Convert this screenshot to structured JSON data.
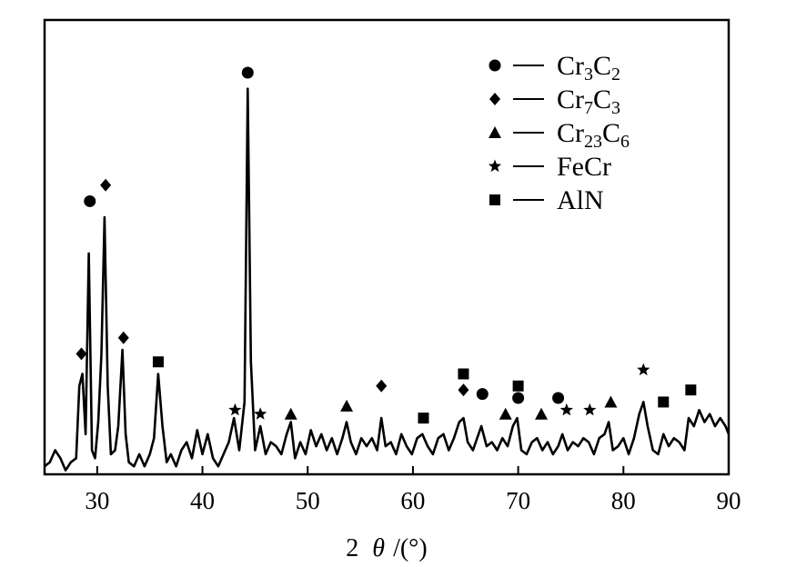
{
  "chart_data": {
    "type": "line",
    "title": "",
    "xlabel_prefix": "2",
    "xlabel_symbol": "θ",
    "xlabel_suffix": "/(°)",
    "ylabel": "",
    "xlim": [
      25,
      90
    ],
    "ylim": [
      0,
      100
    ],
    "xticks": [
      30,
      40,
      50,
      60,
      70,
      80,
      90
    ],
    "xtick_labels": [
      "30",
      "40",
      "50",
      "60",
      "70",
      "80",
      "90"
    ],
    "y_ticks_shown": false,
    "grid": false,
    "legend": {
      "placement": "top-right",
      "entries": [
        {
          "marker": "circle",
          "base": "Cr",
          "sub1": "3",
          "base2": "C",
          "sub2": "2"
        },
        {
          "marker": "diamond",
          "base": "Cr",
          "sub1": "7",
          "base2": "C",
          "sub2": "3"
        },
        {
          "marker": "triangle",
          "base": "Cr",
          "sub1": "23",
          "base2": "C",
          "sub2": "6"
        },
        {
          "marker": "star",
          "base": "FeCr",
          "sub1": "",
          "base2": "",
          "sub2": ""
        },
        {
          "marker": "square",
          "base": "AlN",
          "sub1": "",
          "base2": "",
          "sub2": ""
        }
      ]
    },
    "series": [
      {
        "points": [
          [
            25.0,
            2
          ],
          [
            25.5,
            3
          ],
          [
            26.0,
            6
          ],
          [
            26.5,
            4
          ],
          [
            27.0,
            1
          ],
          [
            27.5,
            3
          ],
          [
            28.0,
            4
          ],
          [
            28.3,
            22
          ],
          [
            28.6,
            25
          ],
          [
            28.9,
            10
          ],
          [
            29.2,
            55
          ],
          [
            29.5,
            6
          ],
          [
            29.8,
            4
          ],
          [
            30.1,
            13
          ],
          [
            30.4,
            30
          ],
          [
            30.7,
            64
          ],
          [
            31.0,
            22
          ],
          [
            31.3,
            5
          ],
          [
            31.7,
            6
          ],
          [
            32.0,
            12
          ],
          [
            32.4,
            31
          ],
          [
            32.7,
            10
          ],
          [
            33.0,
            3
          ],
          [
            33.5,
            2
          ],
          [
            34.0,
            5
          ],
          [
            34.5,
            2
          ],
          [
            35.0,
            5
          ],
          [
            35.4,
            9
          ],
          [
            35.8,
            25
          ],
          [
            36.2,
            12
          ],
          [
            36.6,
            3
          ],
          [
            37.0,
            5
          ],
          [
            37.5,
            2
          ],
          [
            38.0,
            6
          ],
          [
            38.5,
            8
          ],
          [
            39.0,
            4
          ],
          [
            39.5,
            11
          ],
          [
            40.0,
            5
          ],
          [
            40.5,
            10
          ],
          [
            41.0,
            4
          ],
          [
            41.5,
            2
          ],
          [
            42.0,
            5
          ],
          [
            42.5,
            8
          ],
          [
            43.0,
            14
          ],
          [
            43.5,
            6
          ],
          [
            44.0,
            18
          ],
          [
            44.3,
            96
          ],
          [
            44.6,
            28
          ],
          [
            45.0,
            6
          ],
          [
            45.5,
            12
          ],
          [
            46.0,
            5
          ],
          [
            46.5,
            8
          ],
          [
            47.0,
            7
          ],
          [
            47.5,
            5
          ],
          [
            48.0,
            10
          ],
          [
            48.4,
            13
          ],
          [
            48.8,
            4
          ],
          [
            49.3,
            8
          ],
          [
            49.8,
            5
          ],
          [
            50.3,
            11
          ],
          [
            50.8,
            7
          ],
          [
            51.3,
            10
          ],
          [
            51.8,
            6
          ],
          [
            52.3,
            9
          ],
          [
            52.8,
            5
          ],
          [
            53.3,
            9
          ],
          [
            53.7,
            13
          ],
          [
            54.1,
            8
          ],
          [
            54.6,
            5
          ],
          [
            55.1,
            9
          ],
          [
            55.6,
            7
          ],
          [
            56.1,
            9
          ],
          [
            56.6,
            6
          ],
          [
            57.0,
            14
          ],
          [
            57.4,
            7
          ],
          [
            57.9,
            8
          ],
          [
            58.4,
            5
          ],
          [
            58.9,
            10
          ],
          [
            59.4,
            7
          ],
          [
            59.9,
            5
          ],
          [
            60.4,
            9
          ],
          [
            60.9,
            10
          ],
          [
            61.4,
            7
          ],
          [
            61.9,
            5
          ],
          [
            62.4,
            9
          ],
          [
            62.9,
            10
          ],
          [
            63.4,
            6
          ],
          [
            63.9,
            9
          ],
          [
            64.4,
            13
          ],
          [
            64.8,
            14
          ],
          [
            65.2,
            8
          ],
          [
            65.7,
            6
          ],
          [
            66.1,
            9
          ],
          [
            66.5,
            12
          ],
          [
            67.0,
            7
          ],
          [
            67.5,
            8
          ],
          [
            68.0,
            6
          ],
          [
            68.5,
            9
          ],
          [
            69.0,
            7
          ],
          [
            69.5,
            12
          ],
          [
            69.9,
            14
          ],
          [
            70.3,
            6
          ],
          [
            70.8,
            5
          ],
          [
            71.3,
            8
          ],
          [
            71.8,
            9
          ],
          [
            72.3,
            6
          ],
          [
            72.8,
            8
          ],
          [
            73.3,
            5
          ],
          [
            73.8,
            7
          ],
          [
            74.2,
            10
          ],
          [
            74.7,
            6
          ],
          [
            75.2,
            8
          ],
          [
            75.7,
            7
          ],
          [
            76.2,
            9
          ],
          [
            76.7,
            8
          ],
          [
            77.2,
            5
          ],
          [
            77.7,
            9
          ],
          [
            78.2,
            10
          ],
          [
            78.6,
            13
          ],
          [
            79.0,
            6
          ],
          [
            79.5,
            7
          ],
          [
            80.0,
            9
          ],
          [
            80.5,
            5
          ],
          [
            81.0,
            9
          ],
          [
            81.5,
            15
          ],
          [
            81.9,
            18
          ],
          [
            82.3,
            12
          ],
          [
            82.8,
            6
          ],
          [
            83.3,
            5
          ],
          [
            83.8,
            10
          ],
          [
            84.3,
            7
          ],
          [
            84.8,
            9
          ],
          [
            85.3,
            8
          ],
          [
            85.8,
            6
          ],
          [
            86.2,
            14
          ],
          [
            86.7,
            12
          ],
          [
            87.2,
            16
          ],
          [
            87.7,
            13
          ],
          [
            88.2,
            15
          ],
          [
            88.7,
            12
          ],
          [
            89.2,
            14
          ],
          [
            89.7,
            12
          ],
          [
            90.0,
            10
          ]
        ]
      }
    ],
    "markers": [
      {
        "type": "diamond",
        "x": 28.5,
        "y": 30
      },
      {
        "type": "circle",
        "x": 29.3,
        "y": 68
      },
      {
        "type": "diamond",
        "x": 30.8,
        "y": 72
      },
      {
        "type": "diamond",
        "x": 32.5,
        "y": 34
      },
      {
        "type": "square",
        "x": 35.8,
        "y": 28
      },
      {
        "type": "circle",
        "x": 44.3,
        "y": 100
      },
      {
        "type": "star",
        "x": 43.1,
        "y": 16
      },
      {
        "type": "star",
        "x": 45.5,
        "y": 15
      },
      {
        "type": "triangle",
        "x": 48.4,
        "y": 15
      },
      {
        "type": "triangle",
        "x": 53.7,
        "y": 17
      },
      {
        "type": "diamond",
        "x": 57.0,
        "y": 22
      },
      {
        "type": "square",
        "x": 61.0,
        "y": 14
      },
      {
        "type": "square",
        "x": 64.8,
        "y": 25
      },
      {
        "type": "diamond",
        "x": 64.8,
        "y": 21
      },
      {
        "type": "circle",
        "x": 66.6,
        "y": 20
      },
      {
        "type": "square",
        "x": 70.0,
        "y": 22
      },
      {
        "type": "circle",
        "x": 70.0,
        "y": 19
      },
      {
        "type": "triangle",
        "x": 68.8,
        "y": 15
      },
      {
        "type": "triangle",
        "x": 72.2,
        "y": 15
      },
      {
        "type": "circle",
        "x": 73.8,
        "y": 19
      },
      {
        "type": "star",
        "x": 74.6,
        "y": 16
      },
      {
        "type": "star",
        "x": 76.8,
        "y": 16
      },
      {
        "type": "triangle",
        "x": 78.8,
        "y": 18
      },
      {
        "type": "star",
        "x": 81.9,
        "y": 26
      },
      {
        "type": "square",
        "x": 83.8,
        "y": 18
      },
      {
        "type": "square",
        "x": 86.4,
        "y": 21
      }
    ]
  }
}
